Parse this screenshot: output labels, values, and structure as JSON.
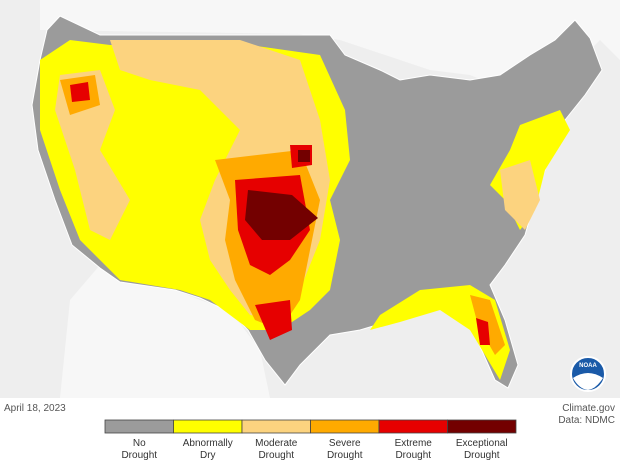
{
  "date": "April 18, 2023",
  "credit": "Climate.gov",
  "source": "Data: NDMC",
  "logo": "NOAA",
  "legend": [
    {
      "lines": [
        "No",
        "Drought"
      ],
      "color": "#9b9b9b"
    },
    {
      "lines": [
        "Abnormally",
        "Dry"
      ],
      "color": "#ffff00"
    },
    {
      "lines": [
        "Moderate",
        "Drought"
      ],
      "color": "#fcd37f"
    },
    {
      "lines": [
        "Severe",
        "Drought"
      ],
      "color": "#ffaa00"
    },
    {
      "lines": [
        "Extreme",
        "Drought"
      ],
      "color": "#e60000"
    },
    {
      "lines": [
        "Exceptional",
        "Drought"
      ],
      "color": "#730000"
    }
  ]
}
